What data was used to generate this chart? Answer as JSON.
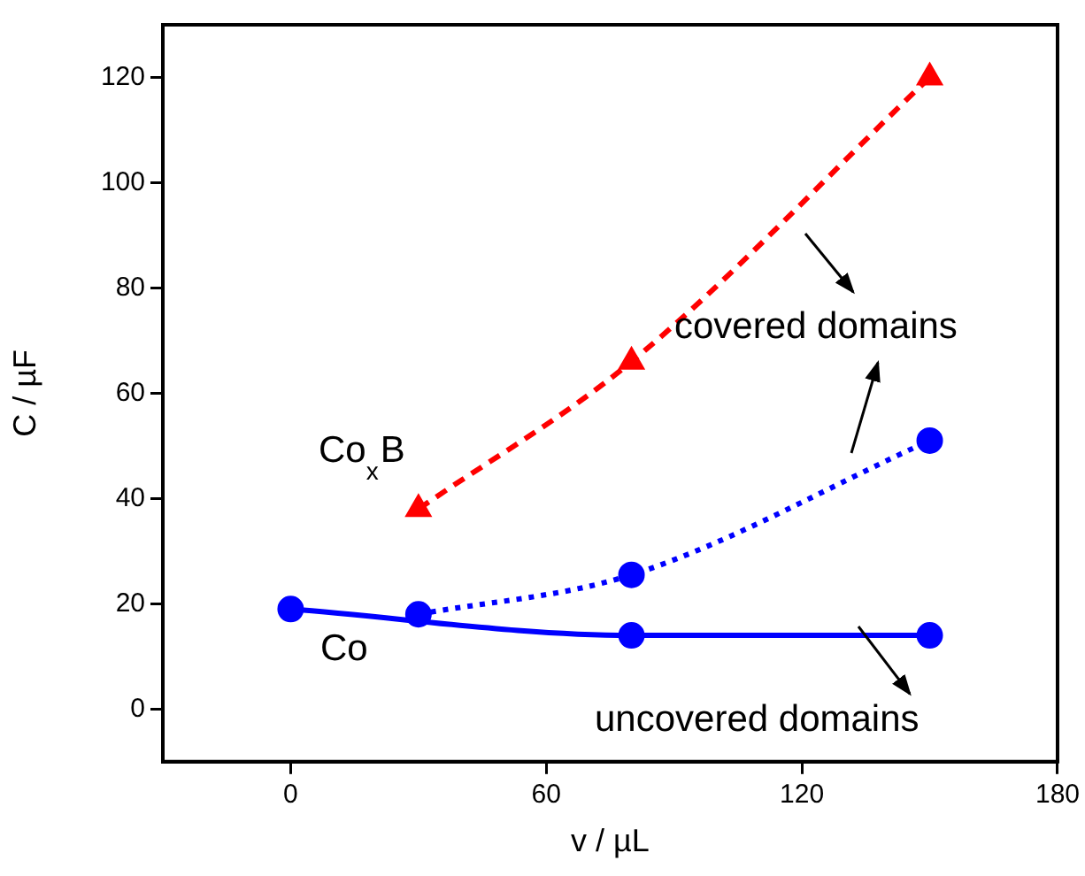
{
  "chart_data": {
    "type": "line",
    "xlabel": "v / µL",
    "ylabel": "C / µF",
    "xlim": [
      -30,
      180
    ],
    "xticks": [
      0,
      60,
      120,
      180
    ],
    "ylim": [
      -10,
      130
    ],
    "yticks": [
      0,
      20,
      40,
      60,
      80,
      100,
      120
    ],
    "grid": false,
    "legend": false,
    "series": [
      {
        "color": "#0000ff",
        "x": [
          0,
          80,
          150
        ],
        "values": [
          19,
          14,
          14
        ],
        "marker": "circle",
        "line_style": "solid"
      },
      {
        "color": "#0000ff",
        "x": [
          30,
          80,
          150
        ],
        "values": [
          18,
          25.5,
          51
        ],
        "marker": "circle",
        "line_style": "dotted"
      },
      {
        "color": "#ff0000",
        "x": [
          30,
          80,
          150
        ],
        "values": [
          38,
          66,
          120
        ],
        "marker": "triangle",
        "line_style": "dashed"
      }
    ],
    "annotations": [
      "Co$_{x}$B",
      "Co",
      "covered domains",
      "uncovered domains"
    ]
  }
}
